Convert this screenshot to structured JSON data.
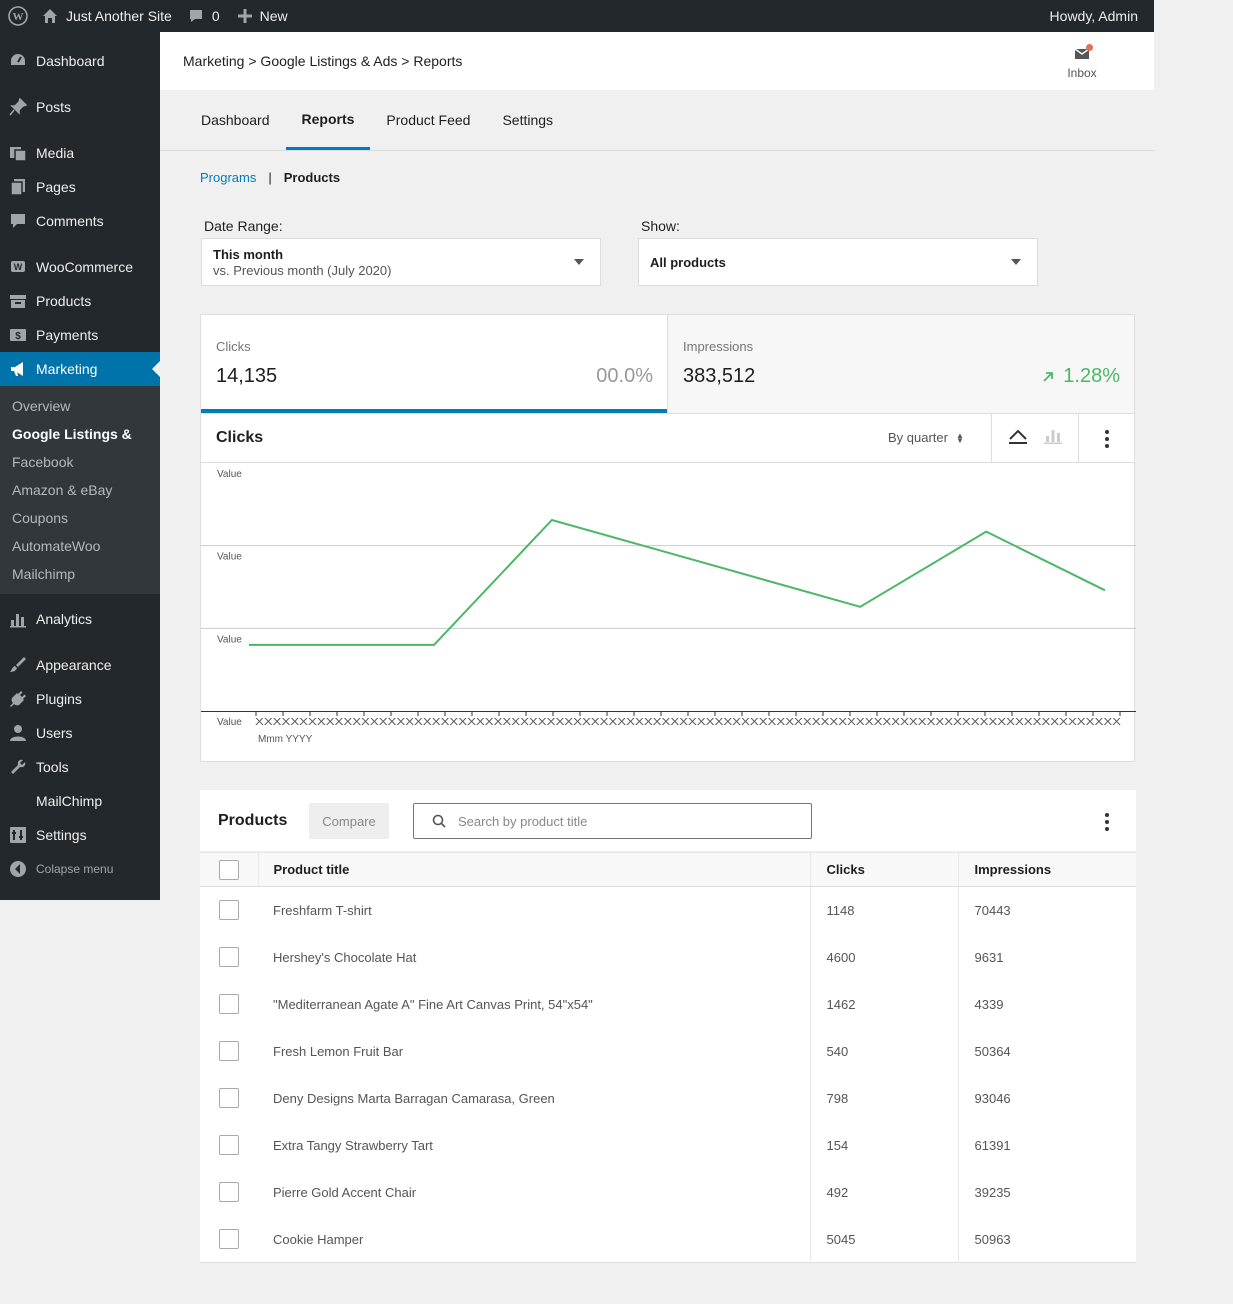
{
  "adminbar": {
    "site_name": "Just Another Site",
    "comments_count": "0",
    "new_label": "New",
    "howdy": "Howdy, Admin"
  },
  "sidebar": {
    "items": [
      {
        "label": "Dashboard",
        "icon": "dashboard-icon"
      },
      {
        "label": "Posts",
        "icon": "pin-icon"
      },
      {
        "label": "Media",
        "icon": "media-icon"
      },
      {
        "label": "Pages",
        "icon": "pages-icon"
      },
      {
        "label": "Comments",
        "icon": "comment-icon"
      },
      {
        "label": "WooCommerce",
        "icon": "woocommerce-icon"
      },
      {
        "label": "Products",
        "icon": "archive-icon"
      },
      {
        "label": "Payments",
        "icon": "dollar-icon"
      },
      {
        "label": "Marketing",
        "icon": "megaphone-icon"
      }
    ],
    "submenu": [
      "Overview",
      "Google Listings &",
      "Facebook",
      "Amazon & eBay",
      "Coupons",
      "AutomateWoo",
      "Mailchimp"
    ],
    "items_bottom": [
      {
        "label": "Analytics",
        "icon": "chart-bar-icon"
      },
      {
        "label": "Appearance",
        "icon": "brush-icon"
      },
      {
        "label": "Plugins",
        "icon": "plug-icon"
      },
      {
        "label": "Users",
        "icon": "user-icon"
      },
      {
        "label": "Tools",
        "icon": "wrench-icon"
      },
      {
        "label": "MailChimp",
        "icon": ""
      },
      {
        "label": "Settings",
        "icon": "settings-icon"
      }
    ],
    "collapse": "Colapse menu"
  },
  "header": {
    "breadcrumb": "Marketing > Google Listings & Ads > Reports",
    "inbox": "Inbox"
  },
  "tabs": [
    "Dashboard",
    "Reports",
    "Product Feed",
    "Settings"
  ],
  "subnav": {
    "programs": "Programs",
    "separator": "|",
    "products": "Products"
  },
  "filters": {
    "date_label": "Date Range:",
    "date_value": "This month",
    "date_compare": "vs. Previous month (July 2020)",
    "show_label": "Show:",
    "show_value": "All products"
  },
  "summary": [
    {
      "label": "Clicks",
      "value": "14,135",
      "delta": "00.0%"
    },
    {
      "label": "Impressions",
      "value": "383,512",
      "delta": "1.28%"
    }
  ],
  "chart": {
    "title": "Clicks",
    "interval": "By quarter",
    "y_tick_label": "Value",
    "x_tick_row": "XXXXXXXXXXXXXXXXXXXXXXXXXXXXXXXXXXXXXXXXXXXXXXXXXXXXXXXXXXXXXXXXXXXXXXXXXXXXXXXXXXXXXXXXXXXXXXXXXX",
    "x_sub_label": "Mmm YYYY",
    "line_color": "#4ab866"
  },
  "chart_data": {
    "type": "line",
    "title": "Clicks",
    "xlabel": "Mmm YYYY",
    "ylabel": "Value",
    "y_tick_labels": [
      "Value",
      "Value",
      "Value",
      "Value"
    ],
    "ylim": [
      0,
      3
    ],
    "grid": true,
    "series": [
      {
        "values": [
          0.8,
          0.8,
          2.31,
          1.26,
          1.26,
          2.17,
          1.46
        ]
      }
    ],
    "x": [
      0,
      2.07,
      3.39,
      6.84,
      6.84,
      8.25,
      9.58
    ],
    "xlim": [
      0,
      9.58
    ]
  },
  "table": {
    "title": "Products",
    "compare": "Compare",
    "search_placeholder": "Search by product title",
    "columns": [
      "Product title",
      "Clicks",
      "Impressions"
    ],
    "rows": [
      {
        "title": "Freshfarm T-shirt",
        "clicks": "1148",
        "impressions": "70443"
      },
      {
        "title": "Hershey's Chocolate Hat",
        "clicks": "4600",
        "impressions": "9631"
      },
      {
        "title": "\"Mediterranean Agate A\" Fine Art Canvas Print, 54\"x54\"",
        "clicks": "1462",
        "impressions": "4339"
      },
      {
        "title": "Fresh Lemon Fruit Bar",
        "clicks": "540",
        "impressions": "50364"
      },
      {
        "title": "Deny Designs Marta Barragan Camarasa, Green",
        "clicks": "798",
        "impressions": "93046"
      },
      {
        "title": "Extra Tangy Strawberry Tart",
        "clicks": "154",
        "impressions": "61391"
      },
      {
        "title": "Pierre Gold Accent Chair",
        "clicks": "492",
        "impressions": "39235"
      },
      {
        "title": "Cookie Hamper",
        "clicks": "5045",
        "impressions": "50963"
      }
    ]
  },
  "colors": {
    "accent": "#007cba",
    "admin_dark": "#23282d",
    "positive": "#4ab866"
  }
}
